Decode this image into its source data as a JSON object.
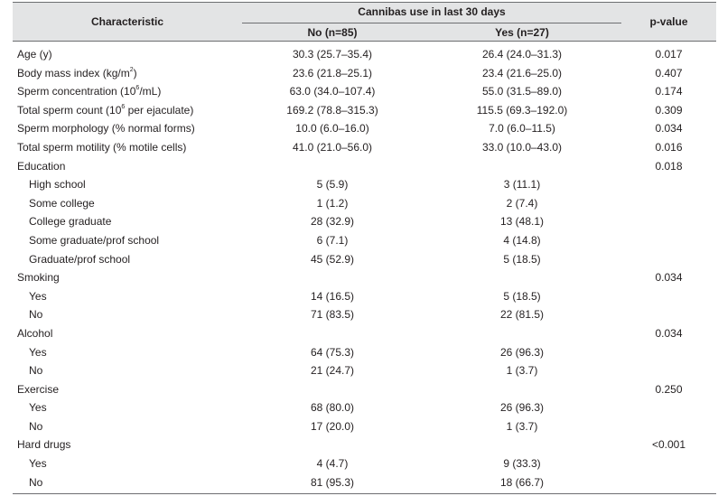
{
  "table": {
    "header": {
      "characteristic": "Characteristic",
      "group": "Cannibas use in last 30 days",
      "no": "No (n=85)",
      "yes": "Yes (n=27)",
      "pvalue": "p-value"
    },
    "rows": [
      {
        "label_pre": "Age (y)",
        "no": "30.3 (25.7–35.4)",
        "yes": "26.4 (24.0–31.3)",
        "p": "0.017"
      },
      {
        "label_pre": "Body mass index (kg/m",
        "sup": "2",
        "label_post": ")",
        "no": "23.6 (21.8–25.1)",
        "yes": "23.4 (21.6–25.0)",
        "p": "0.407"
      },
      {
        "label_pre": "Sperm concentration (10",
        "sup": "6",
        "label_post": "/mL)",
        "no": "63.0 (34.0–107.4)",
        "yes": "55.0 (31.5–89.0)",
        "p": "0.174"
      },
      {
        "label_pre": "Total sperm count (10",
        "sup": "6",
        "label_post": " per ejaculate)",
        "no": "169.2 (78.8–315.3)",
        "yes": "115.5 (69.3–192.0)",
        "p": "0.309"
      },
      {
        "label_pre": "Sperm morphology (% normal forms)",
        "no": "10.0 (6.0–16.0)",
        "yes": "7.0 (6.0–11.5)",
        "p": "0.034"
      },
      {
        "label_pre": "Total sperm motility (% motile cells)",
        "no": "41.0 (21.0–56.0)",
        "yes": "33.0 (10.0–43.0)",
        "p": "0.016"
      },
      {
        "label_pre": "Education",
        "no": "",
        "yes": "",
        "p": "0.018"
      },
      {
        "label_pre": "High school",
        "sub": true,
        "no": "5 (5.9)",
        "yes": "3 (11.1)",
        "p": ""
      },
      {
        "label_pre": "Some college",
        "sub": true,
        "no": "1 (1.2)",
        "yes": "2 (7.4)",
        "p": ""
      },
      {
        "label_pre": "College graduate",
        "sub": true,
        "no": "28 (32.9)",
        "yes": "13 (48.1)",
        "p": ""
      },
      {
        "label_pre": "Some graduate/prof school",
        "sub": true,
        "no": "6 (7.1)",
        "yes": "4 (14.8)",
        "p": ""
      },
      {
        "label_pre": "Graduate/prof school",
        "sub": true,
        "no": "45 (52.9)",
        "yes": "5 (18.5)",
        "p": ""
      },
      {
        "label_pre": "Smoking",
        "no": "",
        "yes": "",
        "p": "0.034"
      },
      {
        "label_pre": "Yes",
        "sub": true,
        "no": "14 (16.5)",
        "yes": "5 (18.5)",
        "p": ""
      },
      {
        "label_pre": "No",
        "sub": true,
        "no": "71 (83.5)",
        "yes": "22 (81.5)",
        "p": ""
      },
      {
        "label_pre": "Alcohol",
        "no": "",
        "yes": "",
        "p": "0.034"
      },
      {
        "label_pre": "Yes",
        "sub": true,
        "no": "64 (75.3)",
        "yes": "26 (96.3)",
        "p": ""
      },
      {
        "label_pre": "No",
        "sub": true,
        "no": "21 (24.7)",
        "yes": "1 (3.7)",
        "p": ""
      },
      {
        "label_pre": "Exercise",
        "no": "",
        "yes": "",
        "p": "0.250"
      },
      {
        "label_pre": "Yes",
        "sub": true,
        "no": "68 (80.0)",
        "yes": "26 (96.3)",
        "p": ""
      },
      {
        "label_pre": "No",
        "sub": true,
        "no": "17 (20.0)",
        "yes": "1 (3.7)",
        "p": ""
      },
      {
        "label_pre": "Hard drugs",
        "no": "",
        "yes": "",
        "p": "<0.001"
      },
      {
        "label_pre": "Yes",
        "sub": true,
        "no": "4 (4.7)",
        "yes": "9 (33.3)",
        "p": ""
      },
      {
        "label_pre": "No",
        "sub": true,
        "no": "81 (95.3)",
        "yes": "18 (66.7)",
        "p": ""
      }
    ]
  }
}
